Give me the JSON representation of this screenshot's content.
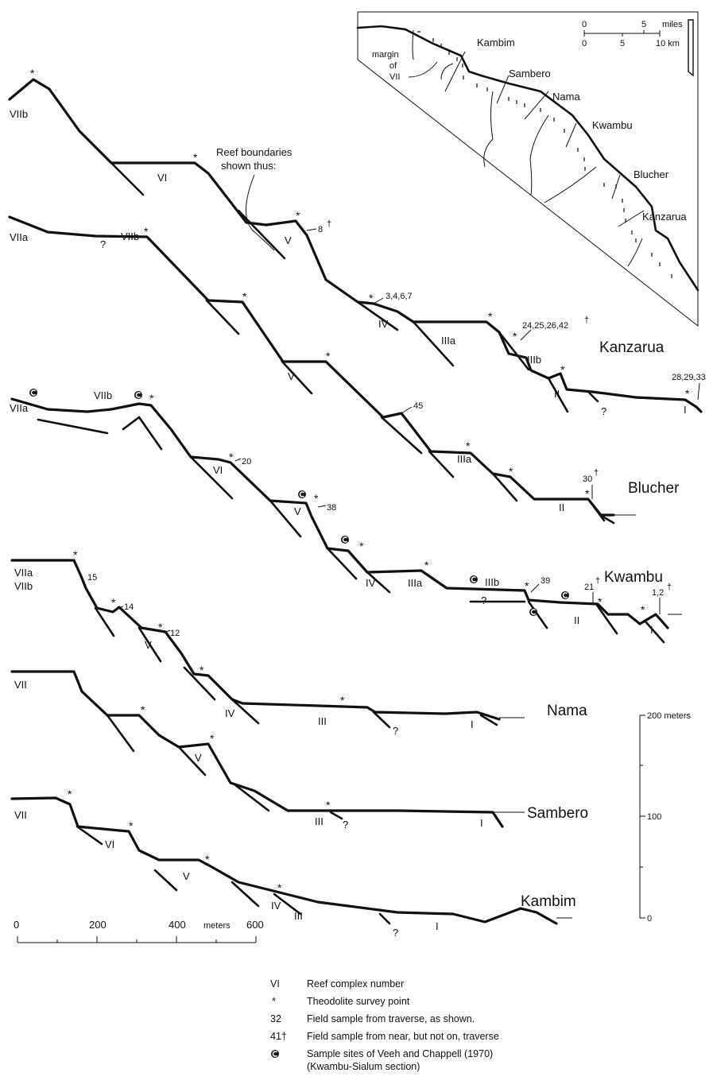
{
  "symbols": {
    "survey": "*",
    "dagger": "†"
  },
  "annotation": "Reef boundaries shown thus:",
  "annotation_lines": [
    "Reef boundaries",
    "shown thus:"
  ],
  "profiles": {
    "kanzarua": {
      "name": "Kanzarua",
      "reefs": [
        "VIIb",
        "VI",
        "V",
        "IV",
        "IIIa",
        "IIIb",
        "II",
        "I"
      ],
      "samples": [
        "8",
        "3,4,6,7",
        "24,25,26,42",
        "28,29,33"
      ],
      "query": "?"
    },
    "blucher": {
      "name": "Blucher",
      "reefs": [
        "VIIa",
        "VIIb",
        "V",
        "IIIa",
        "II"
      ],
      "samples": [
        "45",
        "30"
      ],
      "query": "?"
    },
    "kwambu": {
      "name": "Kwambu",
      "reefs": [
        "VIIa",
        "VIIb",
        "VI",
        "V",
        "IV",
        "IIIa",
        "IIIb",
        "II",
        "I"
      ],
      "samples": [
        "20",
        "38",
        "39",
        "21",
        "1,2"
      ],
      "query": "?"
    },
    "nama": {
      "name": "Nama",
      "reefs": [
        "VIIa",
        "VIIb",
        "V",
        "IV",
        "III",
        "I"
      ],
      "samples": [
        "15",
        "14",
        "12"
      ],
      "query": "?"
    },
    "sambero": {
      "name": "Sambero",
      "reefs": [
        "VII",
        "V",
        "III",
        "I"
      ],
      "query": "?"
    },
    "kambim": {
      "name": "Kambim",
      "reefs": [
        "VII",
        "VI",
        "V",
        "IV",
        "III",
        "I"
      ],
      "query": "?"
    }
  },
  "horizontal_scale": {
    "ticks": [
      "0",
      "200",
      "400",
      "600"
    ],
    "unit": "meters"
  },
  "vertical_scale": {
    "ticks": [
      "200 meters",
      "100",
      "0"
    ]
  },
  "inset_map": {
    "places": [
      "Kambim",
      "Sambero",
      "Nama",
      "Kwambu",
      "Blucher",
      "Kanzarua"
    ],
    "margin_label": [
      "margin",
      "of",
      "VII"
    ],
    "scale_miles": {
      "ticks": [
        "0",
        "5"
      ],
      "unit": "miles"
    },
    "scale_km": {
      "ticks": [
        "0",
        "5",
        "10 km"
      ]
    }
  },
  "legend": [
    {
      "symbol": "VI",
      "text": "Reef complex number"
    },
    {
      "symbol": "*",
      "text": "Theodolite survey point"
    },
    {
      "symbol": "32",
      "text": "Field sample from traverse, as shown."
    },
    {
      "symbol": "41†",
      "text": "Field sample from near, but not on, traverse"
    },
    {
      "symbol": "©",
      "text": "Sample sites of Veeh and Chappell (1970)",
      "text2": "(Kwambu-Sialum section)"
    }
  ]
}
